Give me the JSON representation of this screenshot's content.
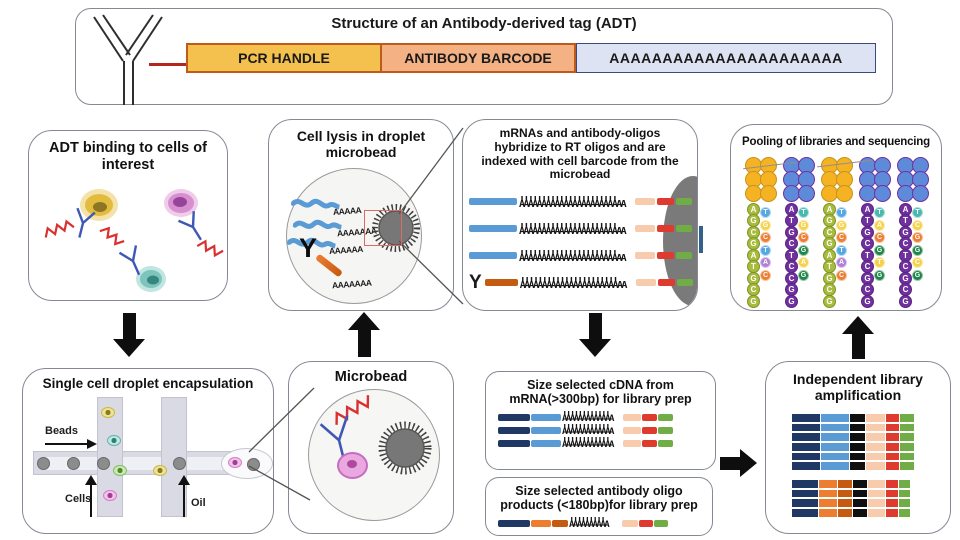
{
  "colors": {
    "navy": "#1F3864",
    "blue": "#5B9BD5",
    "peach": "#F8CBAD",
    "red": "#DF3A2E",
    "green": "#70AD47",
    "orange": "#ED7D31",
    "dark_orange": "#C55A11",
    "black": "#101010",
    "pool_orange": "#F5B324",
    "pool_blue": "#5E8BD9",
    "pool_green": "#A6BC3A",
    "pool_purple": "#7030A0",
    "yellow": "#F5D24B",
    "orange2": "#EE7D31",
    "violet": "#B07FD6",
    "dgreen": "#1E8449",
    "teal": "#48B8B0",
    "sblue": "#56A8E0"
  },
  "adt_structure": {
    "title": "Structure of an Antibody-derived tag (ADT)",
    "segments": [
      {
        "label": "PCR HANDLE"
      },
      {
        "label": "ANTIBODY BARCODE"
      },
      {
        "label": "AAAAAAAAAAAAAAAAAAAAAA"
      }
    ]
  },
  "adt_binding": {
    "title": "ADT binding to cells of interest"
  },
  "cell_lysis": {
    "title": "Cell lysis in droplet microbead",
    "antibody_glyph": "Y",
    "polya_tails": [
      "AAAAA",
      "AAAAAAA",
      "AAAAAA",
      "AAAAAAA"
    ]
  },
  "hybridize": {
    "title": "mRNAs and antibody-oligos hybridize to RT oligos and are indexed with cell barcode from the microbead",
    "antibody_glyph": "Y",
    "duplex_top": "TTTTTTTTTTTTTTTTTTTTTT",
    "duplex_bottom": "AAAAAAAAAAAAAAAAAAAAAAAA",
    "rows": [
      {
        "lead": "mrna"
      },
      {
        "lead": "mrna"
      },
      {
        "lead": "mrna"
      },
      {
        "lead": "antibody"
      }
    ]
  },
  "pooling": {
    "title": "Pooling of libraries and sequencing",
    "groups": [
      {
        "cap": "pool_orange",
        "main_color": "pool_green",
        "main": [
          "A",
          "G",
          "C",
          "G",
          "A",
          "T",
          "G",
          "C",
          "G"
        ],
        "side": [
          {
            "l": "T",
            "c": "sblue"
          },
          {
            "l": "G",
            "c": "yellow"
          },
          {
            "l": "C",
            "c": "orange2"
          },
          {
            "l": "T",
            "c": "sblue"
          },
          {
            "l": "A",
            "c": "violet"
          },
          {
            "l": "C",
            "c": "orange2"
          }
        ]
      },
      {
        "cap": "pool_blue",
        "main_color": "pool_purple",
        "main": [
          "A",
          "T",
          "G",
          "C",
          "T",
          "C",
          "C",
          "G",
          "G"
        ],
        "side": [
          {
            "l": "T",
            "c": "teal"
          },
          {
            "l": "G",
            "c": "yellow"
          },
          {
            "l": "C",
            "c": "orange2"
          },
          {
            "l": "G",
            "c": "dgreen"
          },
          {
            "l": "A",
            "c": "yellow"
          },
          {
            "l": "G",
            "c": "dgreen"
          }
        ]
      },
      {
        "cap": "pool_orange",
        "main_color": "pool_green",
        "main": [
          "A",
          "G",
          "C",
          "G",
          "A",
          "T",
          "G",
          "C",
          "G"
        ],
        "side": [
          {
            "l": "T",
            "c": "sblue"
          },
          {
            "l": "G",
            "c": "yellow"
          },
          {
            "l": "C",
            "c": "orange2"
          },
          {
            "l": "T",
            "c": "sblue"
          },
          {
            "l": "A",
            "c": "violet"
          },
          {
            "l": "C",
            "c": "orange2"
          }
        ]
      },
      {
        "cap": "pool_blue",
        "main_color": "pool_purple",
        "main": [
          "A",
          "T",
          "G",
          "C",
          "T",
          "C",
          "G",
          "C",
          "G"
        ],
        "side": [
          {
            "l": "T",
            "c": "teal"
          },
          {
            "l": "A",
            "c": "yellow"
          },
          {
            "l": "C",
            "c": "orange2"
          },
          {
            "l": "G",
            "c": "dgreen"
          },
          {
            "l": "T",
            "c": "yellow"
          },
          {
            "l": "G",
            "c": "dgreen"
          }
        ]
      },
      {
        "cap": "pool_blue",
        "main_color": "pool_purple",
        "main": [
          "A",
          "T",
          "G",
          "C",
          "T",
          "C",
          "G",
          "C",
          "G"
        ],
        "side": [
          {
            "l": "T",
            "c": "teal"
          },
          {
            "l": "C",
            "c": "yellow"
          },
          {
            "l": "G",
            "c": "orange2"
          },
          {
            "l": "G",
            "c": "dgreen"
          },
          {
            "l": "C",
            "c": "yellow"
          },
          {
            "l": "G",
            "c": "dgreen"
          }
        ]
      }
    ]
  },
  "encapsulation": {
    "title": "Single cell droplet encapsulation",
    "beads_label": "Beads",
    "cells_label": "Cells",
    "oil_label": "Oil"
  },
  "microbead": {
    "title": "Microbead"
  },
  "size_cdna": {
    "title": "Size selected cDNA from mRNA(>300bp) for library prep",
    "duplex_top": "TTTTTTTTTTTT",
    "duplex_bottom": "AAAAAAAAAAAAA",
    "row_count": 3
  },
  "size_antibody": {
    "title": "Size selected antibody oligo products (<180bp)for library prep",
    "duplex_top": "TTTTTTTTT",
    "duplex_bottom": "AAAAAAAAAA"
  },
  "amplification": {
    "title": "Independent library amplification",
    "stacks": [
      {
        "rows": 6,
        "segs": [
          "navy",
          "blue",
          "black",
          "peach",
          "red",
          "green"
        ],
        "widths": [
          28,
          28,
          15,
          19,
          13,
          14
        ]
      },
      {
        "rows": 4,
        "segs": [
          "navy",
          "orange",
          "dark_orange",
          "black",
          "peach",
          "red",
          "green"
        ],
        "widths": [
          26,
          18,
          14,
          14,
          17,
          12,
          11
        ]
      }
    ]
  }
}
